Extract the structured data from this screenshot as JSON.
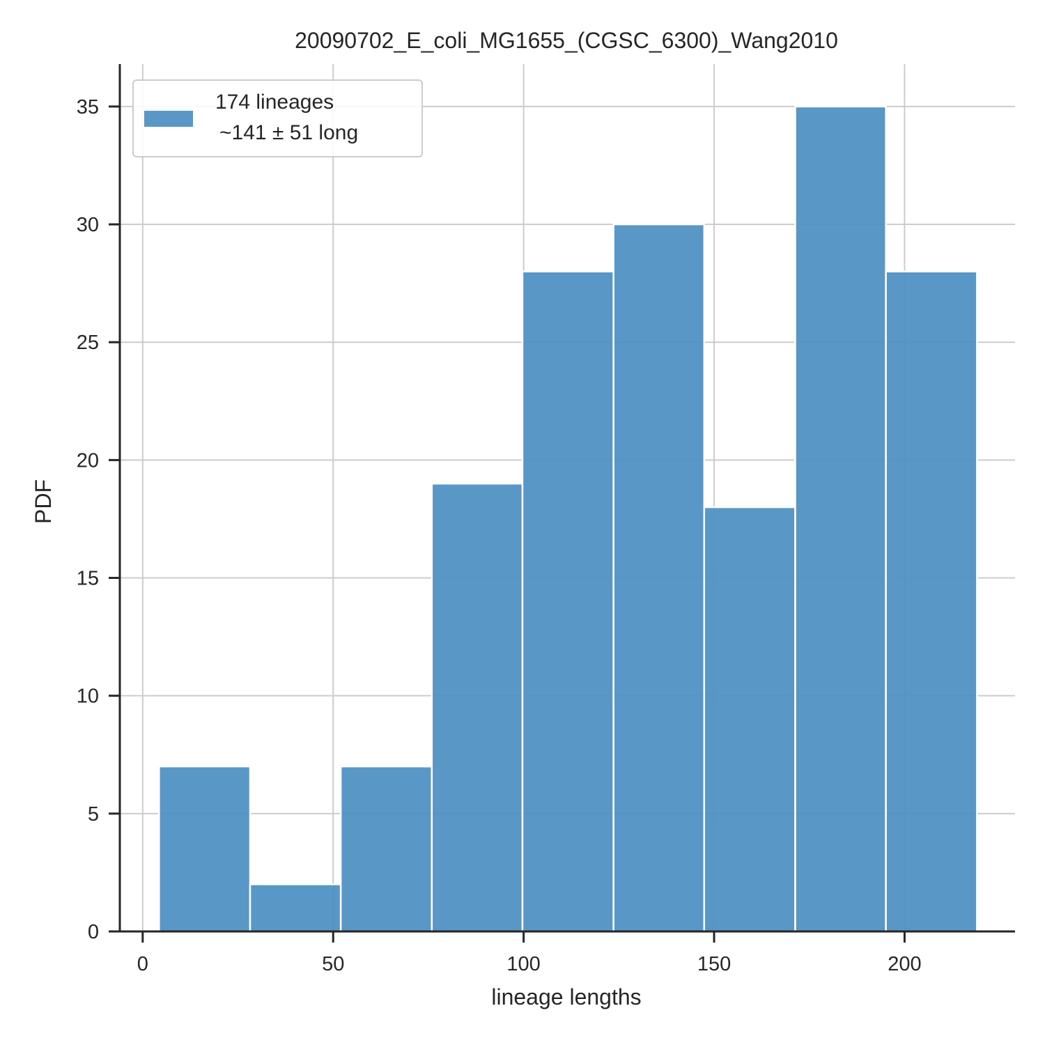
{
  "chart_data": {
    "type": "bar",
    "subtype": "histogram",
    "title": "20090702_E_coli_MG1655_(CGSC_6300)_Wang2010",
    "xlabel": "lineage lengths",
    "ylabel": "PDF",
    "xlim": [
      -6,
      229
    ],
    "ylim": [
      0,
      36.8
    ],
    "xticks": [
      0,
      50,
      100,
      150,
      200
    ],
    "yticks": [
      0,
      5,
      10,
      15,
      20,
      25,
      30,
      35
    ],
    "grid": true,
    "bin_edges": [
      4.3,
      28.2,
      52.0,
      75.9,
      99.7,
      123.6,
      147.4,
      171.3,
      195.1,
      219.0
    ],
    "values": [
      7,
      2,
      7,
      19,
      28,
      30,
      18,
      35,
      28
    ],
    "legend": {
      "placement": "top-left",
      "lines": [
        "174 lineages",
        "~141 ± 51 long"
      ]
    },
    "colors": {
      "bar": "#4c8fc3",
      "grid": "#cccccc",
      "axis": "#262626"
    }
  }
}
